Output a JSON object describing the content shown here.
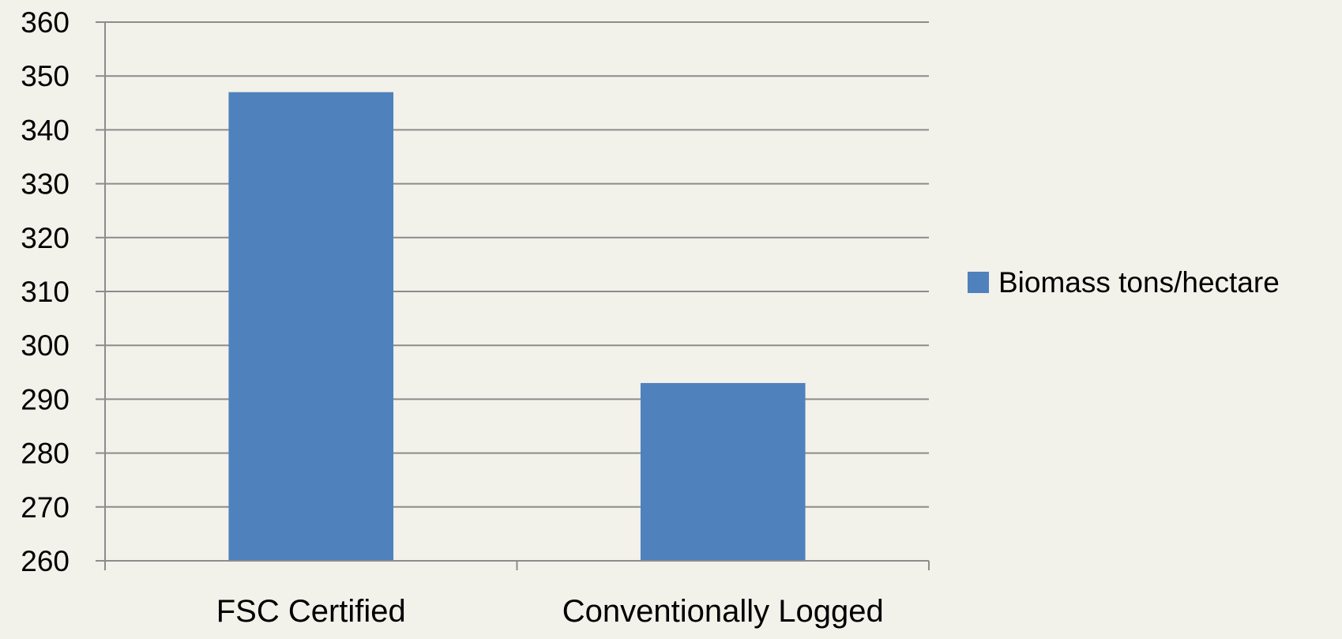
{
  "chart_data": {
    "type": "bar",
    "title": "",
    "xlabel": "",
    "ylabel": "",
    "categories": [
      "FSC Certified",
      "Conventionally Logged"
    ],
    "series": [
      {
        "name": "Biomass tons/hectare",
        "values": [
          347,
          293
        ],
        "color": "#4f81bd"
      }
    ],
    "ylim": [
      260,
      360
    ],
    "yticks": [
      260,
      270,
      280,
      290,
      300,
      310,
      320,
      330,
      340,
      350,
      360
    ],
    "grid": true,
    "legend_position": "right"
  },
  "colors": {
    "background": "#f2f1ea",
    "gridline": "#8c8c8c",
    "axis": "#8c8c8c",
    "bar": "#4f81bd"
  }
}
